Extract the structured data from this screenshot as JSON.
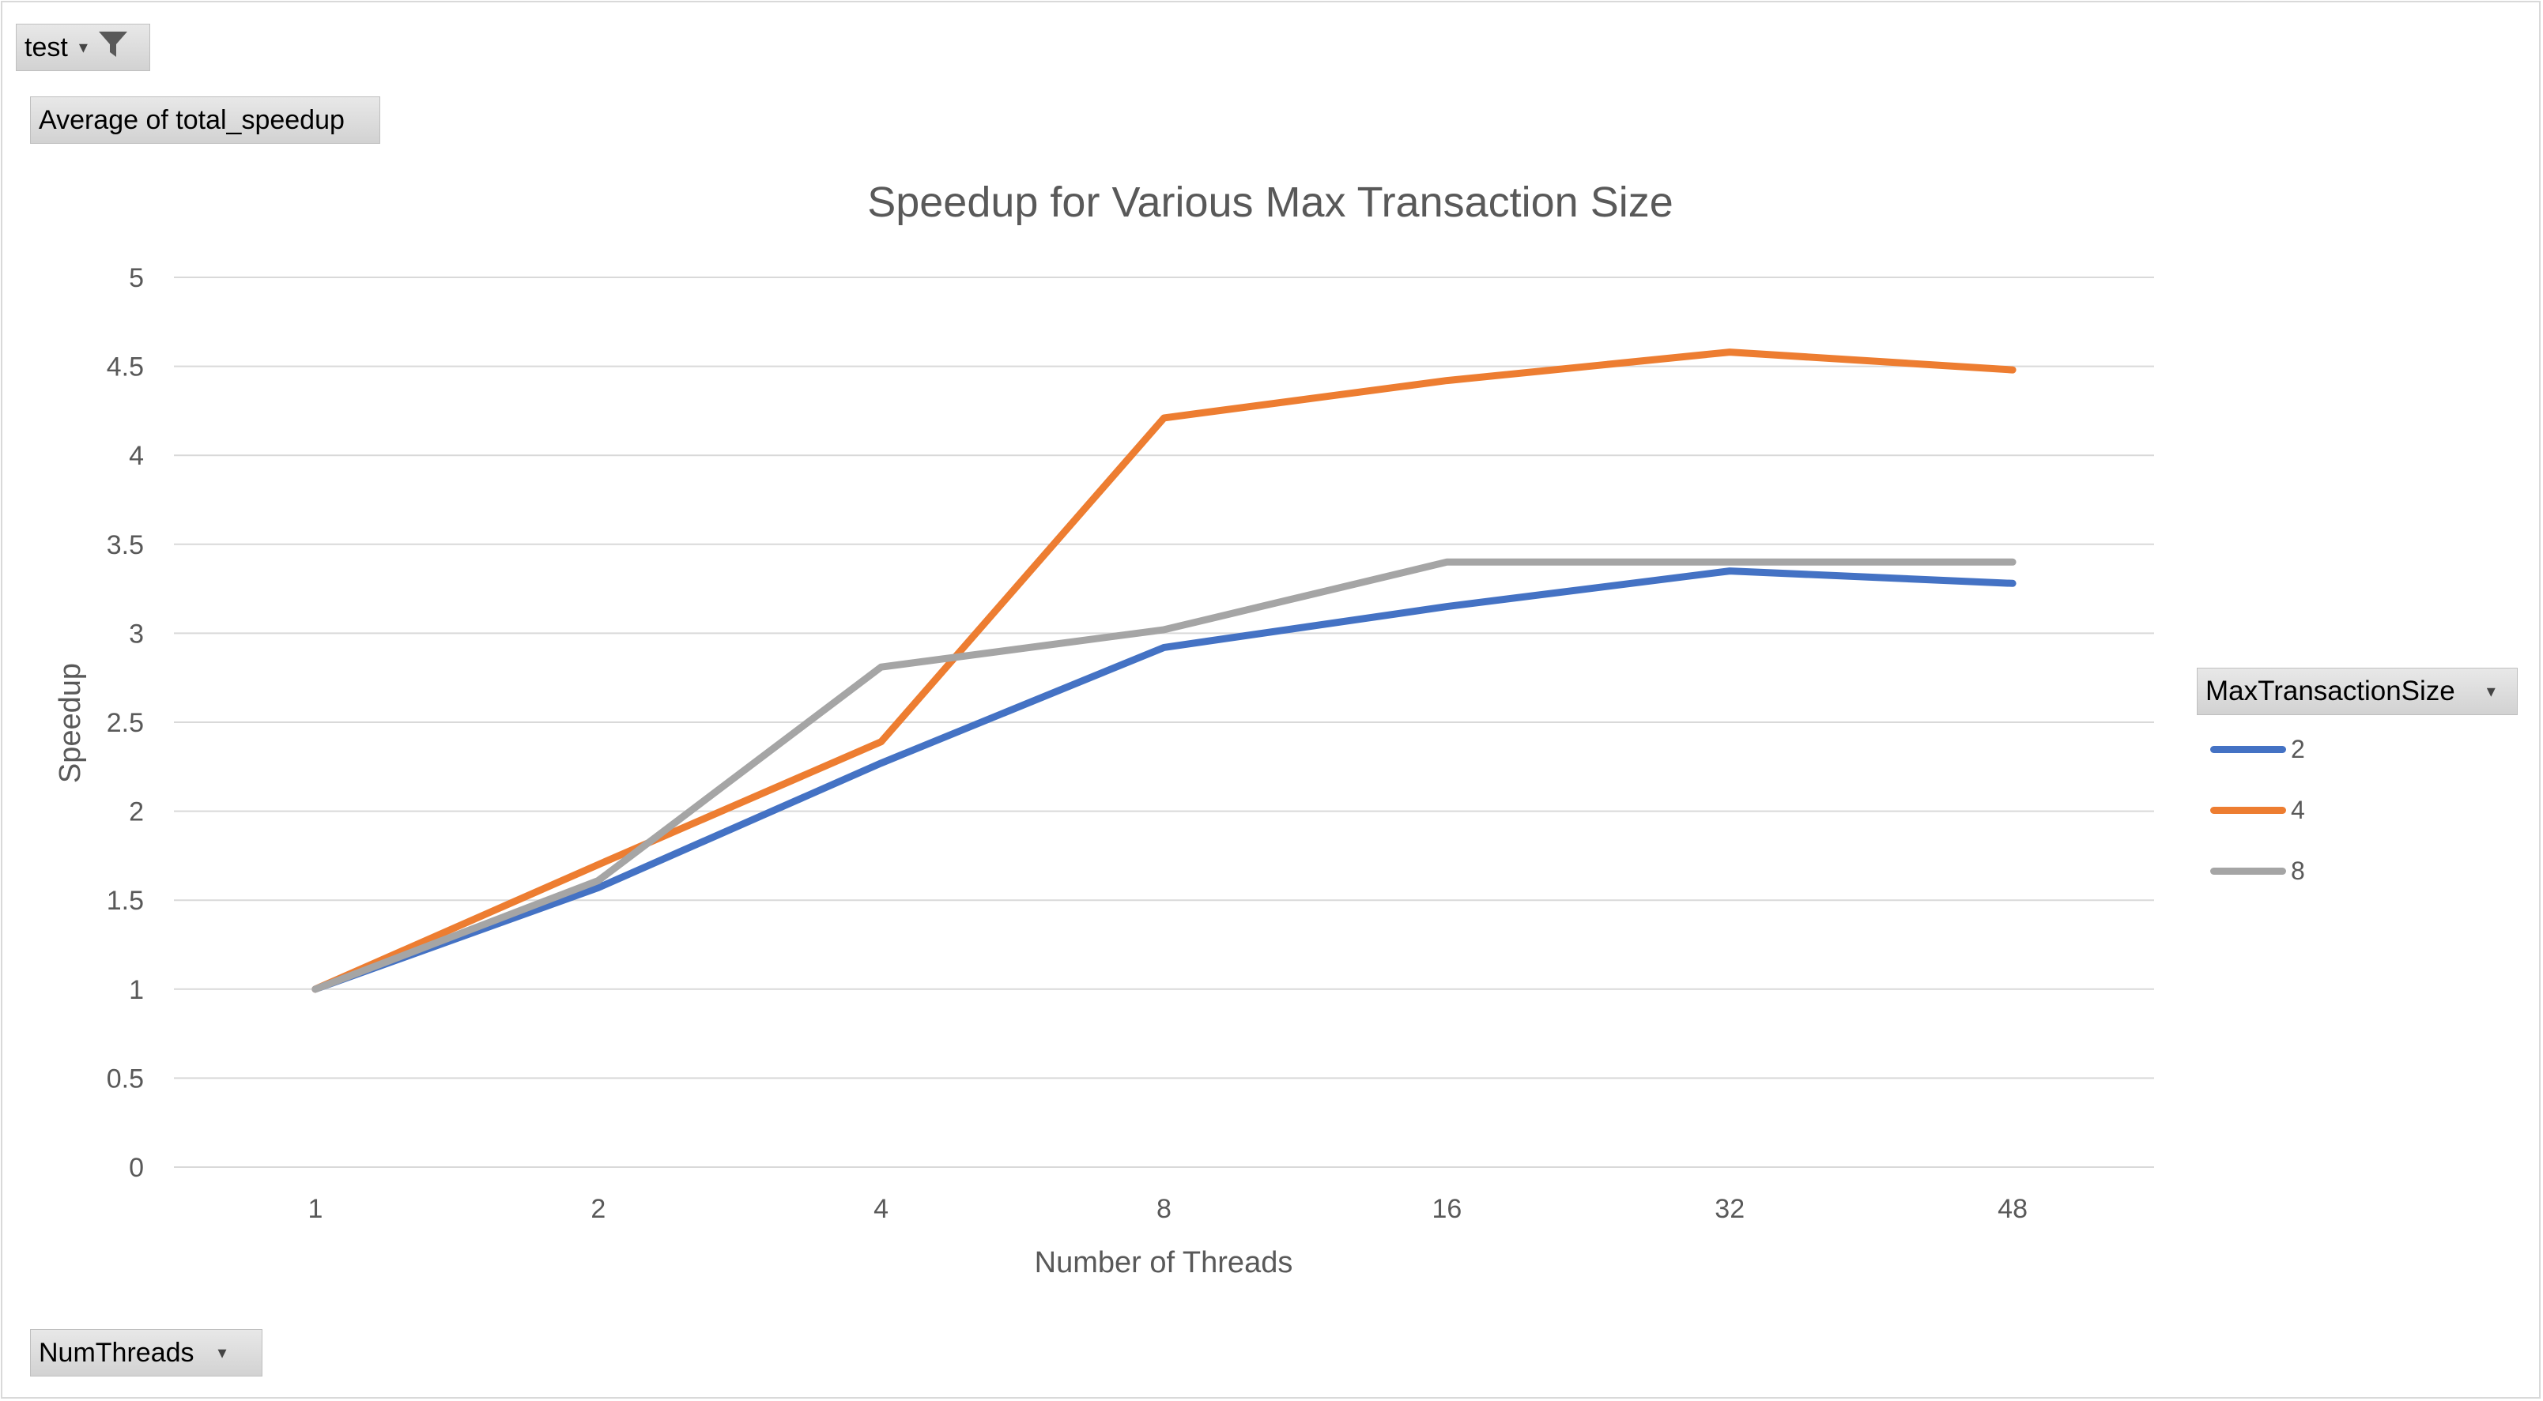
{
  "pivot": {
    "filter_label": "test",
    "value_field_label": "Average of total_speedup",
    "axis_field_label": "NumThreads",
    "legend_field_label": "MaxTransactionSize"
  },
  "icons": {
    "filter": "filter-icon",
    "dropdown": "chevron-down-icon"
  },
  "chart_data": {
    "type": "line",
    "title": "Speedup for Various Max Transaction Size",
    "xlabel": "Number of Threads",
    "ylabel": "Speedup",
    "categories": [
      "1",
      "2",
      "4",
      "8",
      "16",
      "32",
      "48"
    ],
    "ylim": [
      0,
      5
    ],
    "yticks": [
      "0",
      "0.5",
      "1",
      "1.5",
      "2",
      "2.5",
      "3",
      "3.5",
      "4",
      "4.5",
      "5"
    ],
    "grid": true,
    "legend_position": "right",
    "series": [
      {
        "name": "2",
        "color": "#4472c4",
        "values": [
          1.0,
          1.57,
          2.27,
          2.92,
          3.15,
          3.35,
          3.28
        ]
      },
      {
        "name": "4",
        "color": "#ed7d31",
        "values": [
          1.0,
          1.7,
          2.39,
          4.21,
          4.42,
          4.58,
          4.48
        ]
      },
      {
        "name": "8",
        "color": "#a5a5a5",
        "values": [
          1.0,
          1.61,
          2.81,
          3.02,
          3.4,
          3.4,
          3.4
        ]
      }
    ]
  }
}
